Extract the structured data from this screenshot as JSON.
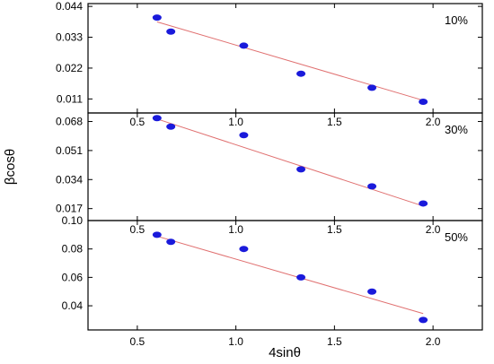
{
  "figure": {
    "ylabel": "βcosθ",
    "xlabel": "4sinθ"
  },
  "chart_data": [
    {
      "type": "scatter",
      "panel_label": "10%",
      "xlim": [
        0.25,
        2.25
      ],
      "ylim": [
        0.006,
        0.045
      ],
      "x_ticks": [
        0.5,
        1.0,
        1.5,
        2.0
      ],
      "x_tick_labels": [
        "0.5",
        "1.0",
        "1.5",
        "2.0"
      ],
      "y_ticks": [
        0.011,
        0.022,
        0.033,
        0.044
      ],
      "y_tick_labels": [
        "0.011",
        "0.022",
        "0.033",
        "0.044"
      ],
      "marker_color": "#1a1adb",
      "fit_color": "#e07070",
      "points": [
        {
          "x": 0.6,
          "y": 0.04
        },
        {
          "x": 0.67,
          "y": 0.035
        },
        {
          "x": 1.04,
          "y": 0.03
        },
        {
          "x": 1.33,
          "y": 0.02
        },
        {
          "x": 1.69,
          "y": 0.015
        },
        {
          "x": 1.95,
          "y": 0.01
        }
      ],
      "fit_line": {
        "x": [
          0.6,
          1.95
        ],
        "y": [
          0.0385,
          0.0105
        ]
      }
    },
    {
      "type": "scatter",
      "panel_label": "30%",
      "xlim": [
        0.25,
        2.25
      ],
      "ylim": [
        0.01,
        0.073
      ],
      "x_ticks": [
        0.5,
        1.0,
        1.5,
        2.0
      ],
      "x_tick_labels": [
        "0.5",
        "1.0",
        "1.5",
        "2.0"
      ],
      "y_ticks": [
        0.017,
        0.034,
        0.051,
        0.068
      ],
      "y_tick_labels": [
        "0.017",
        "0.034",
        "0.051",
        "0.068"
      ],
      "marker_color": "#1a1adb",
      "fit_color": "#e07070",
      "points": [
        {
          "x": 0.6,
          "y": 0.07
        },
        {
          "x": 0.67,
          "y": 0.065
        },
        {
          "x": 1.04,
          "y": 0.06
        },
        {
          "x": 1.33,
          "y": 0.04
        },
        {
          "x": 1.69,
          "y": 0.03
        },
        {
          "x": 1.95,
          "y": 0.02
        }
      ],
      "fit_line": {
        "x": [
          0.6,
          1.95
        ],
        "y": [
          0.0695,
          0.0185
        ]
      }
    },
    {
      "type": "scatter",
      "panel_label": "50%",
      "xlim": [
        0.25,
        2.25
      ],
      "ylim": [
        0.023,
        0.1
      ],
      "x_ticks": [
        0.5,
        1.0,
        1.5,
        2.0
      ],
      "x_tick_labels": [
        "0.5",
        "1.0",
        "1.5",
        "2.0"
      ],
      "y_ticks": [
        0.04,
        0.06,
        0.08,
        0.1
      ],
      "y_tick_labels": [
        "0.04",
        "0.06",
        "0.08",
        "0.10"
      ],
      "marker_color": "#1a1adb",
      "fit_color": "#e07070",
      "points": [
        {
          "x": 0.6,
          "y": 0.09
        },
        {
          "x": 0.67,
          "y": 0.085
        },
        {
          "x": 1.04,
          "y": 0.08
        },
        {
          "x": 1.33,
          "y": 0.06
        },
        {
          "x": 1.69,
          "y": 0.05
        },
        {
          "x": 1.95,
          "y": 0.03
        }
      ],
      "fit_line": {
        "x": [
          0.6,
          1.95
        ],
        "y": [
          0.089,
          0.0345
        ]
      }
    }
  ]
}
